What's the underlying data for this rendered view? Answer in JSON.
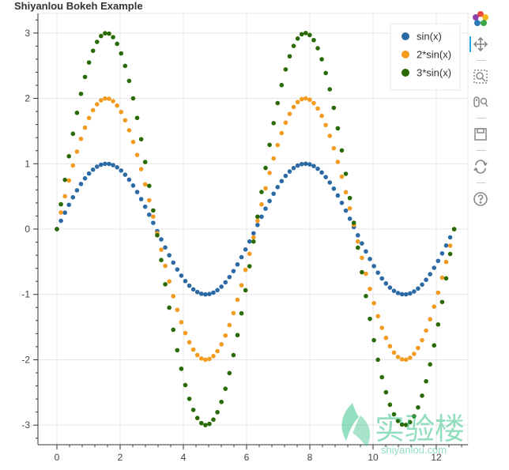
{
  "chart_data": {
    "type": "scatter",
    "title": "Shiyanlou Bokeh Example",
    "xlim": [
      -0.6,
      13.0
    ],
    "ylim": [
      -3.3,
      3.3
    ],
    "x_ticks": [
      0,
      2,
      4,
      6,
      8,
      10,
      12
    ],
    "y_ticks": [
      -3,
      -2,
      -1,
      0,
      1,
      2,
      3
    ],
    "grid": true,
    "legend_position": "top-right",
    "x_range": [
      0,
      12.566
    ],
    "n_points": 100,
    "series": [
      {
        "name": "sin(x)",
        "amplitude": 1,
        "color": "#2b6aa5"
      },
      {
        "name": "2*sin(x)",
        "amplitude": 2,
        "color": "#f39b1f"
      },
      {
        "name": "3*sin(x)",
        "amplitude": 3,
        "color": "#2a6a05"
      }
    ]
  },
  "toolbar": {
    "tools": [
      {
        "name": "bokeh-logo-icon"
      },
      {
        "name": "pan-icon"
      },
      {
        "name": "box-zoom-icon"
      },
      {
        "name": "wheel-zoom-icon"
      },
      {
        "name": "save-icon"
      },
      {
        "name": "reset-icon"
      },
      {
        "name": "help-icon"
      }
    ]
  },
  "watermark": {
    "brand": "实验楼",
    "url": "shiyanlou.com",
    "color": "#3cc48a"
  }
}
